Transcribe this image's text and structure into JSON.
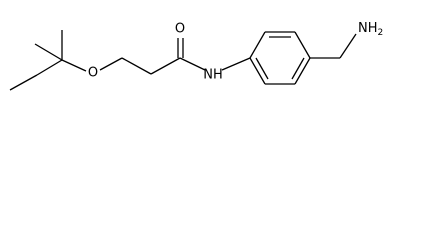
{
  "nodes": [
    {
      "label": "O"
    },
    {
      "label": "O"
    },
    {
      "label": "NH"
    },
    {
      "label": "NH",
      "subscript": "2"
    }
  ]
}
